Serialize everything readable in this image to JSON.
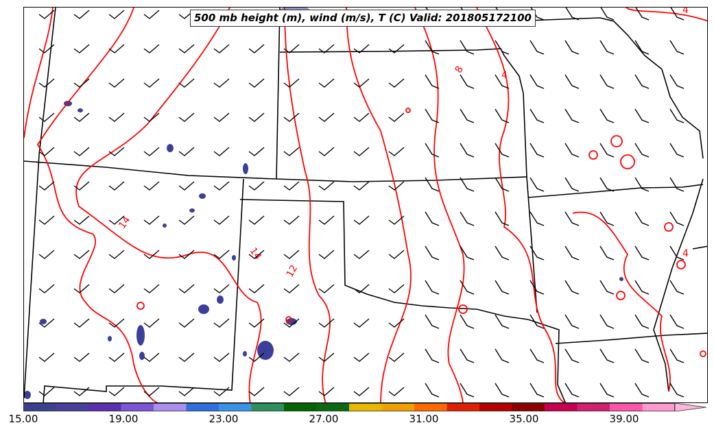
{
  "title": "500 mb height (m), wind (m/s), T (C) Valid: 201805172100",
  "contour_labels": [
    "4",
    "8",
    "4",
    "14",
    "14",
    "12",
    "4"
  ],
  "colorbar": {
    "ticks": [
      "15.00",
      "19.00",
      "23.00",
      "27.00",
      "31.00",
      "35.00",
      "39.00"
    ],
    "colors": [
      "#3b3f8f",
      "#4a3f9c",
      "#5a2fb0",
      "#7b56d8",
      "#a98ff0",
      "#2f6fe0",
      "#3a92e8",
      "#2e8f5e",
      "#006400",
      "#0a6a10",
      "#e8b800",
      "#f0a000",
      "#ff6a00",
      "#e02000",
      "#b80000",
      "#8b0000",
      "#c8004f",
      "#d22070",
      "#ff55aa",
      "#ff9ad0"
    ]
  },
  "colors": {
    "temperature_contour": "#ff0000",
    "borders": "#000000",
    "wind_barbs": "#000000",
    "shading": "#3b3f9a"
  },
  "chart_data": {
    "type": "map",
    "title": "500 mb height (m), wind (m/s), T (C) Valid: 201805172100",
    "valid": "201805172100",
    "colorbar_range": [
      15.0,
      41.0
    ],
    "colorbar_ticks": [
      15.0,
      19.0,
      23.0,
      27.0,
      31.0,
      35.0,
      39.0
    ],
    "temperature_contour_labels": [
      4,
      8,
      4,
      14,
      14,
      12,
      4
    ]
  }
}
